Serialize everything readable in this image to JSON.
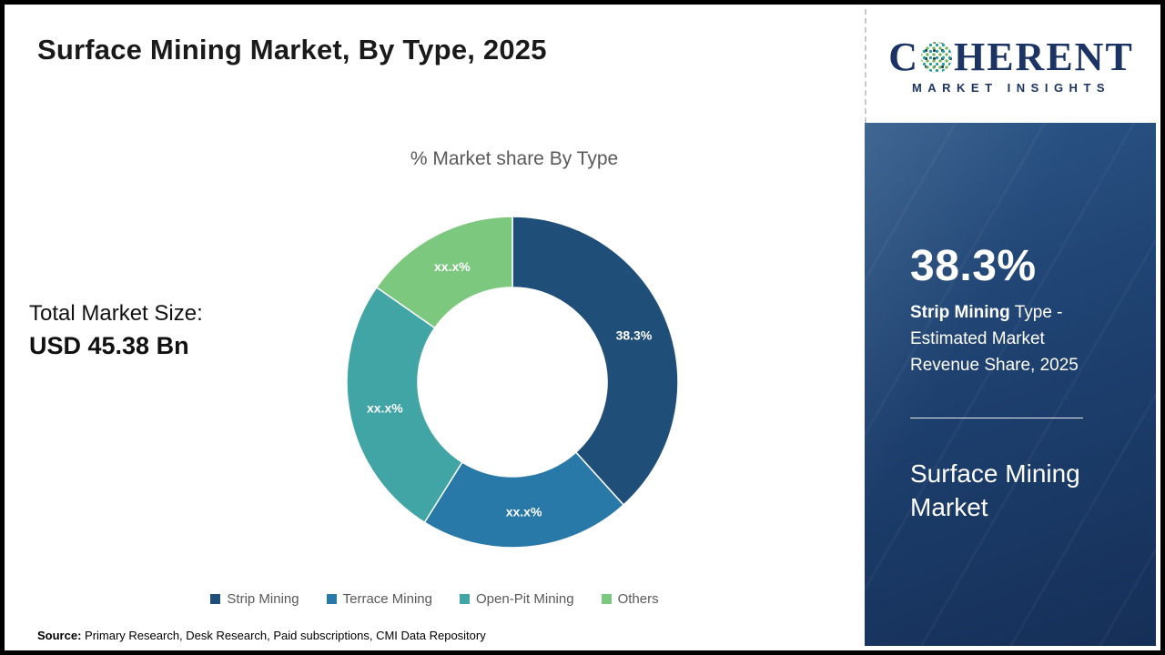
{
  "page": {
    "title": "Surface Mining Market, By Type, 2025"
  },
  "logo": {
    "word_c": "C",
    "word_rest": "HERENT",
    "tagline": "MARKET INSIGHTS",
    "brand_color": "#1b3464"
  },
  "left": {
    "total_label": "Total Market Size:",
    "total_value": "USD 45.38 Bn"
  },
  "chart_data": {
    "type": "pie",
    "donut": true,
    "title": "% Market share By Type",
    "legend_position": "bottom",
    "inner_radius_ratio": 0.57,
    "segments": [
      {
        "label": "Strip Mining",
        "value": 38.3,
        "display": "38.3%",
        "color": "#1f4e79"
      },
      {
        "label": "Terrace Mining",
        "value": 20.6,
        "display": "xx.x%",
        "color": "#2878a8"
      },
      {
        "label": "Open-Pit Mining",
        "value": 25.8,
        "display": "xx.x%",
        "color": "#42a5a5"
      },
      {
        "label": "Others",
        "value": 15.3,
        "display": "xx.x%",
        "color": "#7dc87f"
      }
    ]
  },
  "panel": {
    "stat": "38.3%",
    "desc_bold": "Strip Mining",
    "desc_rest": " Type - Estimated Market Revenue Share, 2025",
    "product": "Surface Mining Market",
    "background_color": "#1e4170"
  },
  "footer": {
    "source_label": "Source:",
    "source_text": " Primary Research, Desk Research, Paid subscriptions, CMI Data Repository"
  }
}
